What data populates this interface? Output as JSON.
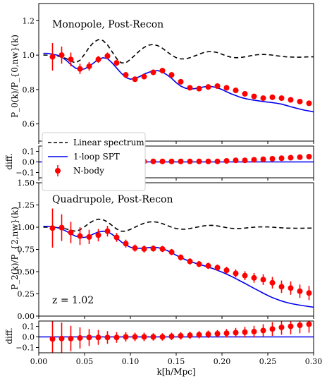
{
  "chart_data": [
    {
      "id": "monopole",
      "type": "line",
      "title": "Monopole, Post-Recon",
      "ylabel": "P_0(k)/P_{0,nw}(k)",
      "ylim": [
        0.5,
        1.3
      ],
      "yticks": [
        0.6,
        0.8,
        1.0,
        1.2
      ],
      "ytick_labels": [
        "0.6",
        "0.8",
        "1.0",
        "1.2"
      ],
      "legend": {
        "position": "lower-left",
        "entries": [
          "Linear spectrum",
          "1-loop SPT",
          "N-body"
        ]
      },
      "series": [
        {
          "name": "Linear spectrum",
          "style": "dashed",
          "color": "#000000",
          "x": [
            0.005,
            0.01,
            0.015,
            0.02,
            0.025,
            0.03,
            0.035,
            0.04,
            0.045,
            0.05,
            0.055,
            0.06,
            0.065,
            0.07,
            0.075,
            0.08,
            0.085,
            0.09,
            0.095,
            0.1,
            0.105,
            0.11,
            0.115,
            0.12,
            0.125,
            0.13,
            0.135,
            0.14,
            0.145,
            0.15,
            0.155,
            0.16,
            0.165,
            0.17,
            0.175,
            0.18,
            0.185,
            0.19,
            0.195,
            0.2,
            0.205,
            0.21,
            0.215,
            0.22,
            0.225,
            0.23,
            0.235,
            0.24,
            0.245,
            0.25,
            0.255,
            0.26,
            0.265,
            0.27,
            0.275,
            0.28,
            0.285,
            0.29,
            0.295,
            0.3
          ],
          "y": [
            1.0,
            1.0,
            0.998,
            0.995,
            0.99,
            0.98,
            0.965,
            0.955,
            0.97,
            1.005,
            1.045,
            1.075,
            1.09,
            1.085,
            1.06,
            1.02,
            0.98,
            0.955,
            0.955,
            0.975,
            1.0,
            1.025,
            1.045,
            1.058,
            1.062,
            1.055,
            1.04,
            1.02,
            1.0,
            0.985,
            0.978,
            0.978,
            0.985,
            0.995,
            1.005,
            1.015,
            1.02,
            1.02,
            1.015,
            1.005,
            0.995,
            0.988,
            0.985,
            0.986,
            0.99,
            0.995,
            1.0,
            1.003,
            1.004,
            1.003,
            1.0,
            0.996,
            0.993,
            0.99,
            0.989,
            0.988,
            0.988,
            0.989,
            0.99,
            0.99
          ]
        },
        {
          "name": "1-loop SPT",
          "style": "solid",
          "color": "#0000ee",
          "x": [
            0.005,
            0.01,
            0.015,
            0.02,
            0.025,
            0.03,
            0.035,
            0.04,
            0.045,
            0.05,
            0.055,
            0.06,
            0.065,
            0.07,
            0.075,
            0.08,
            0.085,
            0.09,
            0.095,
            0.1,
            0.105,
            0.11,
            0.115,
            0.12,
            0.125,
            0.13,
            0.135,
            0.14,
            0.145,
            0.15,
            0.155,
            0.16,
            0.165,
            0.17,
            0.175,
            0.18,
            0.185,
            0.19,
            0.195,
            0.2,
            0.205,
            0.21,
            0.215,
            0.22,
            0.225,
            0.23,
            0.235,
            0.24,
            0.245,
            0.25,
            0.255,
            0.26,
            0.265,
            0.27,
            0.275,
            0.28,
            0.285,
            0.29,
            0.295,
            0.3
          ],
          "y": [
            1.01,
            1.01,
            1.005,
            1.0,
            0.99,
            0.97,
            0.945,
            0.925,
            0.915,
            0.92,
            0.935,
            0.955,
            0.975,
            0.985,
            0.98,
            0.955,
            0.925,
            0.895,
            0.87,
            0.86,
            0.865,
            0.875,
            0.89,
            0.9,
            0.908,
            0.91,
            0.902,
            0.885,
            0.865,
            0.84,
            0.82,
            0.808,
            0.803,
            0.805,
            0.81,
            0.815,
            0.818,
            0.816,
            0.81,
            0.8,
            0.787,
            0.775,
            0.765,
            0.755,
            0.748,
            0.742,
            0.738,
            0.734,
            0.73,
            0.727,
            0.724,
            0.72,
            0.715,
            0.708,
            0.7,
            0.693,
            0.686,
            0.68,
            0.675,
            0.67
          ]
        },
        {
          "name": "N-body",
          "style": "markers",
          "color": "#ff0000",
          "x": [
            0.015,
            0.025,
            0.035,
            0.045,
            0.055,
            0.065,
            0.075,
            0.085,
            0.095,
            0.105,
            0.115,
            0.125,
            0.135,
            0.145,
            0.155,
            0.165,
            0.175,
            0.185,
            0.195,
            0.205,
            0.215,
            0.225,
            0.235,
            0.245,
            0.255,
            0.265,
            0.275,
            0.285,
            0.295
          ],
          "y": [
            0.99,
            1.0,
            0.975,
            0.92,
            0.935,
            0.975,
            0.995,
            0.955,
            0.885,
            0.86,
            0.875,
            0.9,
            0.91,
            0.885,
            0.845,
            0.81,
            0.805,
            0.815,
            0.82,
            0.81,
            0.795,
            0.775,
            0.76,
            0.75,
            0.755,
            0.75,
            0.74,
            0.73,
            0.72
          ],
          "err": [
            0.08,
            0.05,
            0.04,
            0.03,
            0.025,
            0.02,
            0.02,
            0.018,
            0.016,
            0.015,
            0.014,
            0.013,
            0.012,
            0.012,
            0.011,
            0.011,
            0.01,
            0.01,
            0.01,
            0.01,
            0.01,
            0.01,
            0.01,
            0.01,
            0.01,
            0.01,
            0.01,
            0.01,
            0.01
          ]
        }
      ]
    },
    {
      "id": "monopole-diff",
      "type": "scatter",
      "ylabel": "diff.",
      "ylim": [
        -0.15,
        0.15
      ],
      "yticks": [
        -0.1,
        0.0,
        0.1
      ],
      "ytick_labels": [
        "−0.1",
        "0.0",
        "0.1"
      ],
      "series": [
        {
          "name": "zero line",
          "style": "solid",
          "color": "#0000ee",
          "x": [
            0.0,
            0.3
          ],
          "y": [
            0.0,
            0.0
          ]
        },
        {
          "name": "N-body",
          "style": "markers",
          "color": "#ff0000",
          "x": [
            0.015,
            0.025,
            0.035,
            0.045,
            0.055,
            0.065,
            0.075,
            0.085,
            0.095,
            0.105,
            0.115,
            0.125,
            0.135,
            0.145,
            0.155,
            0.165,
            0.175,
            0.185,
            0.195,
            0.205,
            0.215,
            0.225,
            0.235,
            0.245,
            0.255,
            0.265,
            0.275,
            0.285,
            0.295
          ],
          "y": [
            -0.01,
            -0.01,
            0.0,
            0.0,
            0.005,
            0.005,
            0.005,
            0.005,
            0.005,
            0.005,
            0.005,
            0.005,
            0.005,
            0.005,
            0.005,
            0.005,
            0.005,
            0.005,
            0.005,
            0.01,
            0.015,
            0.015,
            0.02,
            0.025,
            0.03,
            0.035,
            0.04,
            0.045,
            0.05
          ],
          "err": [
            0.08,
            0.05,
            0.04,
            0.03,
            0.025,
            0.02,
            0.02,
            0.018,
            0.016,
            0.015,
            0.014,
            0.013,
            0.012,
            0.012,
            0.011,
            0.011,
            0.01,
            0.01,
            0.01,
            0.01,
            0.01,
            0.01,
            0.01,
            0.01,
            0.01,
            0.01,
            0.01,
            0.01,
            0.01
          ]
        }
      ]
    },
    {
      "id": "quadrupole",
      "type": "line",
      "title": "Quadrupole, Post-Recon",
      "annotation": "z = 1.02",
      "ylabel": "P_2(k)/P_{2,nw}(k)",
      "ylim": [
        0.0,
        1.5
      ],
      "yticks": [
        0.0,
        0.25,
        0.5,
        0.75,
        1.0,
        1.25,
        1.5
      ],
      "ytick_labels": [
        "0.00",
        "0.25",
        "0.50",
        "0.75",
        "1.00",
        "1.25",
        "1.50"
      ],
      "series": [
        {
          "name": "Linear spectrum",
          "style": "dashed",
          "color": "#000000",
          "x": [
            0.005,
            0.01,
            0.015,
            0.02,
            0.025,
            0.03,
            0.035,
            0.04,
            0.045,
            0.05,
            0.055,
            0.06,
            0.065,
            0.07,
            0.075,
            0.08,
            0.085,
            0.09,
            0.095,
            0.1,
            0.105,
            0.11,
            0.115,
            0.12,
            0.125,
            0.13,
            0.135,
            0.14,
            0.145,
            0.15,
            0.155,
            0.16,
            0.165,
            0.17,
            0.175,
            0.18,
            0.185,
            0.19,
            0.195,
            0.2,
            0.205,
            0.21,
            0.215,
            0.22,
            0.225,
            0.23,
            0.235,
            0.24,
            0.245,
            0.25,
            0.255,
            0.26,
            0.265,
            0.27,
            0.275,
            0.28,
            0.285,
            0.29,
            0.295,
            0.3
          ],
          "y": [
            1.0,
            1.0,
            0.998,
            0.995,
            0.99,
            0.98,
            0.965,
            0.955,
            0.97,
            1.005,
            1.045,
            1.075,
            1.09,
            1.085,
            1.06,
            1.02,
            0.98,
            0.955,
            0.955,
            0.975,
            1.0,
            1.025,
            1.045,
            1.058,
            1.062,
            1.055,
            1.04,
            1.02,
            1.0,
            0.985,
            0.978,
            0.978,
            0.985,
            0.995,
            1.005,
            1.015,
            1.02,
            1.02,
            1.015,
            1.005,
            0.995,
            0.988,
            0.985,
            0.986,
            0.99,
            0.995,
            1.0,
            1.003,
            1.004,
            1.003,
            1.0,
            0.996,
            0.993,
            0.99,
            0.989,
            0.988,
            0.988,
            0.989,
            0.99,
            0.99
          ]
        },
        {
          "name": "1-loop SPT",
          "style": "solid",
          "color": "#0000ee",
          "x": [
            0.005,
            0.01,
            0.015,
            0.02,
            0.025,
            0.03,
            0.035,
            0.04,
            0.045,
            0.05,
            0.055,
            0.06,
            0.065,
            0.07,
            0.075,
            0.08,
            0.085,
            0.09,
            0.095,
            0.1,
            0.105,
            0.11,
            0.115,
            0.12,
            0.125,
            0.13,
            0.135,
            0.14,
            0.145,
            0.15,
            0.155,
            0.16,
            0.165,
            0.17,
            0.175,
            0.18,
            0.185,
            0.19,
            0.195,
            0.2,
            0.205,
            0.21,
            0.215,
            0.22,
            0.225,
            0.23,
            0.235,
            0.24,
            0.245,
            0.25,
            0.255,
            0.26,
            0.265,
            0.27,
            0.275,
            0.28,
            0.285,
            0.29,
            0.295,
            0.3
          ],
          "y": [
            1.01,
            1.01,
            1.005,
            0.995,
            0.98,
            0.955,
            0.925,
            0.9,
            0.885,
            0.885,
            0.9,
            0.925,
            0.945,
            0.955,
            0.95,
            0.92,
            0.88,
            0.835,
            0.8,
            0.775,
            0.765,
            0.762,
            0.765,
            0.77,
            0.772,
            0.77,
            0.758,
            0.738,
            0.712,
            0.685,
            0.658,
            0.635,
            0.615,
            0.598,
            0.582,
            0.568,
            0.552,
            0.535,
            0.515,
            0.495,
            0.472,
            0.448,
            0.422,
            0.395,
            0.368,
            0.34,
            0.312,
            0.285,
            0.258,
            0.232,
            0.208,
            0.188,
            0.17,
            0.155,
            0.142,
            0.132,
            0.123,
            0.115,
            0.107,
            0.1
          ]
        },
        {
          "name": "N-body",
          "style": "markers",
          "color": "#ff0000",
          "x": [
            0.015,
            0.025,
            0.035,
            0.045,
            0.055,
            0.065,
            0.075,
            0.085,
            0.095,
            0.105,
            0.115,
            0.125,
            0.135,
            0.145,
            0.155,
            0.165,
            0.175,
            0.185,
            0.195,
            0.205,
            0.215,
            0.225,
            0.235,
            0.245,
            0.255,
            0.265,
            0.275,
            0.285,
            0.295
          ],
          "y": [
            0.99,
            0.995,
            0.94,
            0.9,
            0.89,
            0.91,
            0.955,
            0.885,
            0.815,
            0.765,
            0.755,
            0.76,
            0.755,
            0.72,
            0.66,
            0.615,
            0.585,
            0.565,
            0.545,
            0.515,
            0.48,
            0.455,
            0.43,
            0.41,
            0.375,
            0.33,
            0.315,
            0.28,
            0.26
          ],
          "err": [
            0.22,
            0.15,
            0.12,
            0.1,
            0.08,
            0.07,
            0.06,
            0.05,
            0.045,
            0.04,
            0.04,
            0.035,
            0.035,
            0.035,
            0.035,
            0.035,
            0.035,
            0.035,
            0.035,
            0.04,
            0.045,
            0.05,
            0.055,
            0.06,
            0.065,
            0.07,
            0.075,
            0.075,
            0.08
          ]
        }
      ]
    },
    {
      "id": "quadrupole-diff",
      "type": "scatter",
      "ylabel": "diff.",
      "xlabel": "k[h/Mpc]",
      "xlim": [
        0.0,
        0.3
      ],
      "xticks": [
        0.0,
        0.05,
        0.1,
        0.15,
        0.2,
        0.25,
        0.3
      ],
      "xtick_labels": [
        "0.00",
        "0.05",
        "0.10",
        "0.15",
        "0.20",
        "0.25",
        "0.30"
      ],
      "ylim": [
        -0.15,
        0.15
      ],
      "yticks": [
        -0.1,
        0.0,
        0.1
      ],
      "ytick_labels": [
        "−0.1",
        "0.0",
        "0.1"
      ],
      "series": [
        {
          "name": "zero line",
          "style": "solid",
          "color": "#0000ee",
          "x": [
            0.0,
            0.3
          ],
          "y": [
            0.0,
            0.0
          ]
        },
        {
          "name": "N-body",
          "style": "markers",
          "color": "#ff0000",
          "x": [
            0.015,
            0.025,
            0.035,
            0.045,
            0.055,
            0.065,
            0.075,
            0.085,
            0.095,
            0.105,
            0.115,
            0.125,
            0.135,
            0.145,
            0.155,
            0.165,
            0.175,
            0.185,
            0.195,
            0.205,
            0.215,
            0.225,
            0.235,
            0.245,
            0.255,
            0.265,
            0.275,
            0.285,
            0.295
          ],
          "y": [
            -0.02,
            -0.015,
            -0.015,
            -0.01,
            -0.005,
            -0.005,
            -0.005,
            -0.005,
            0.0,
            0.0,
            0.0,
            0.0,
            0.0,
            0.005,
            0.01,
            0.015,
            0.02,
            0.025,
            0.03,
            0.035,
            0.04,
            0.045,
            0.05,
            0.06,
            0.075,
            0.09,
            0.1,
            0.11,
            0.12
          ],
          "err": [
            0.22,
            0.15,
            0.12,
            0.1,
            0.08,
            0.07,
            0.06,
            0.05,
            0.045,
            0.04,
            0.04,
            0.035,
            0.035,
            0.035,
            0.035,
            0.035,
            0.035,
            0.035,
            0.035,
            0.04,
            0.045,
            0.05,
            0.055,
            0.06,
            0.065,
            0.07,
            0.075,
            0.075,
            0.08
          ]
        }
      ]
    }
  ]
}
